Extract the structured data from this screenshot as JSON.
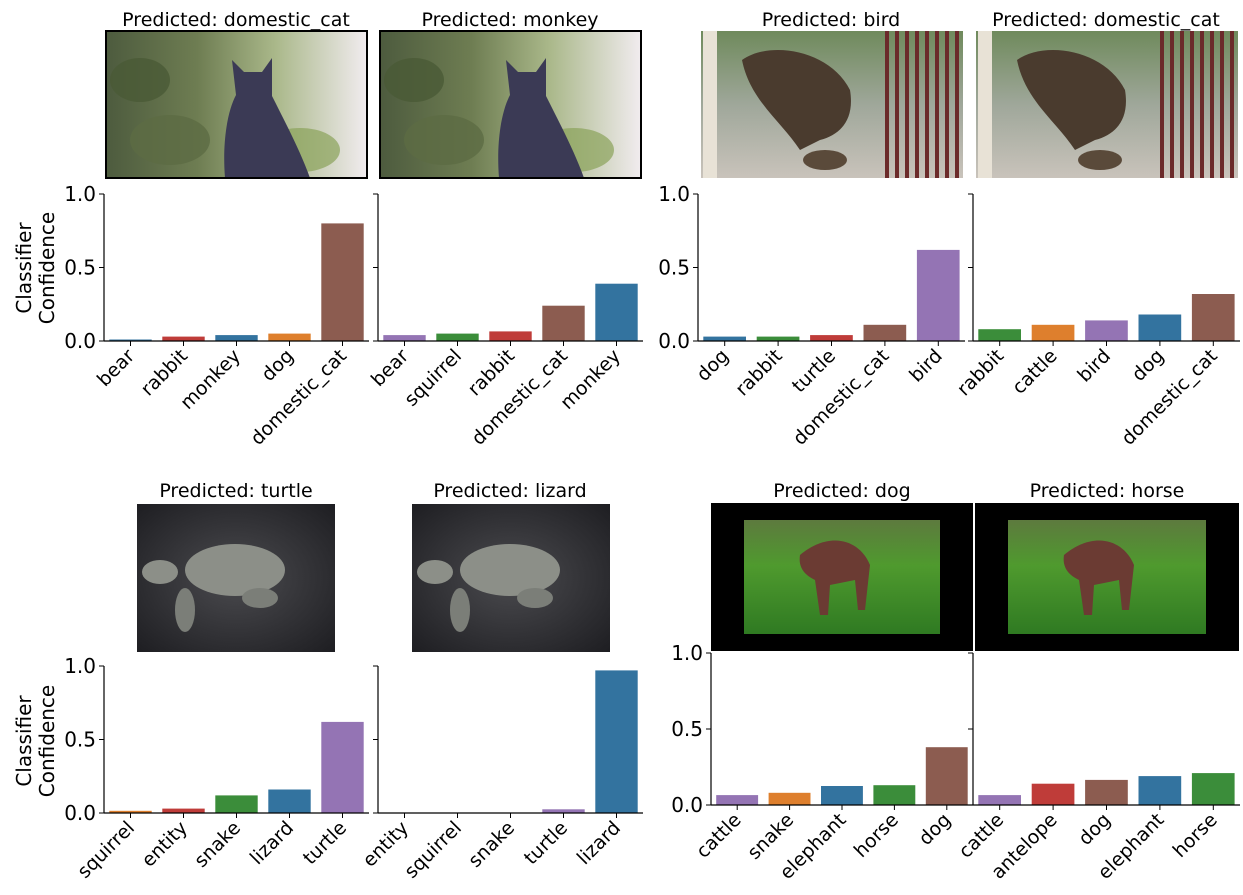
{
  "colors": {
    "brown": "#8c5c50",
    "blue": "#33739f",
    "purple": "#9474b4",
    "green": "#3b8d3a",
    "red": "#bf3c39",
    "orange": "#de7f2d"
  },
  "ylabel_line1": "Classifier",
  "ylabel_line2": "Confidence",
  "chart_data": [
    {
      "type": "bar",
      "title": "Predicted: domestic_cat",
      "image": "kitten-sitting-among-ivy-leaves",
      "categories": [
        "bear",
        "rabbit",
        "monkey",
        "dog",
        "domestic_cat"
      ],
      "values": [
        0.01,
        0.03,
        0.04,
        0.05,
        0.8
      ],
      "colors": [
        "blue",
        "red",
        "blue",
        "orange",
        "brown"
      ],
      "ylim": [
        0,
        1
      ],
      "yticks": [
        "0.0",
        "0.5",
        "1.0"
      ]
    },
    {
      "type": "bar",
      "title": "Predicted: monkey",
      "image": "kitten-sitting-among-ivy-leaves-perturbed",
      "categories": [
        "bear",
        "squirrel",
        "rabbit",
        "domestic_cat",
        "monkey"
      ],
      "values": [
        0.04,
        0.05,
        0.065,
        0.24,
        0.39
      ],
      "colors": [
        "purple",
        "green",
        "red",
        "brown",
        "blue"
      ],
      "ylim": [
        0,
        1
      ]
    },
    {
      "type": "bar",
      "title": "Predicted: bird",
      "image": "hawk-eating-prey-on-balcony",
      "categories": [
        "dog",
        "rabbit",
        "turtle",
        "domestic_cat",
        "bird"
      ],
      "values": [
        0.03,
        0.03,
        0.04,
        0.11,
        0.62
      ],
      "colors": [
        "blue",
        "green",
        "red",
        "brown",
        "purple"
      ],
      "ylim": [
        0,
        1
      ],
      "yticks": [
        "0.0",
        "0.5",
        "1.0"
      ]
    },
    {
      "type": "bar",
      "title": "Predicted: domestic_cat",
      "image": "hawk-eating-prey-on-balcony-perturbed",
      "categories": [
        "rabbit",
        "cattle",
        "bird",
        "dog",
        "domestic_cat"
      ],
      "values": [
        0.08,
        0.11,
        0.14,
        0.18,
        0.32
      ],
      "colors": [
        "green",
        "orange",
        "purple",
        "blue",
        "brown"
      ],
      "ylim": [
        0,
        1
      ]
    },
    {
      "type": "bar",
      "title": "Predicted: turtle",
      "image": "baby-turtle-on-dark-ground",
      "categories": [
        "squirrel",
        "entity",
        "snake",
        "lizard",
        "turtle"
      ],
      "values": [
        0.015,
        0.03,
        0.12,
        0.16,
        0.62
      ],
      "colors": [
        "orange",
        "red",
        "green",
        "blue",
        "purple"
      ],
      "ylim": [
        0,
        1
      ],
      "yticks": [
        "0.0",
        "0.5",
        "1.0"
      ]
    },
    {
      "type": "bar",
      "title": "Predicted: lizard",
      "image": "baby-turtle-on-dark-ground-perturbed",
      "categories": [
        "entity",
        "squirrel",
        "snake",
        "turtle",
        "lizard"
      ],
      "values": [
        0.002,
        0.002,
        0.002,
        0.025,
        0.97
      ],
      "colors": [
        "red",
        "orange",
        "green",
        "purple",
        "blue"
      ],
      "ylim": [
        0,
        1
      ]
    },
    {
      "type": "bar",
      "title": "Predicted: dog",
      "image": "brown-dog-in-tall-grass",
      "categories": [
        "cattle",
        "snake",
        "elephant",
        "horse",
        "dog"
      ],
      "values": [
        0.065,
        0.08,
        0.125,
        0.13,
        0.38
      ],
      "colors": [
        "purple",
        "orange",
        "blue",
        "green",
        "brown"
      ],
      "ylim": [
        0,
        1
      ],
      "yticks": [
        "0.0",
        "0.5",
        "1.0"
      ]
    },
    {
      "type": "bar",
      "title": "Predicted: horse",
      "image": "brown-dog-in-tall-grass-perturbed",
      "categories": [
        "cattle",
        "antelope",
        "dog",
        "elephant",
        "horse"
      ],
      "values": [
        0.065,
        0.14,
        0.165,
        0.19,
        0.21
      ],
      "colors": [
        "purple",
        "red",
        "brown",
        "blue",
        "green"
      ],
      "ylim": [
        0,
        1
      ]
    }
  ]
}
